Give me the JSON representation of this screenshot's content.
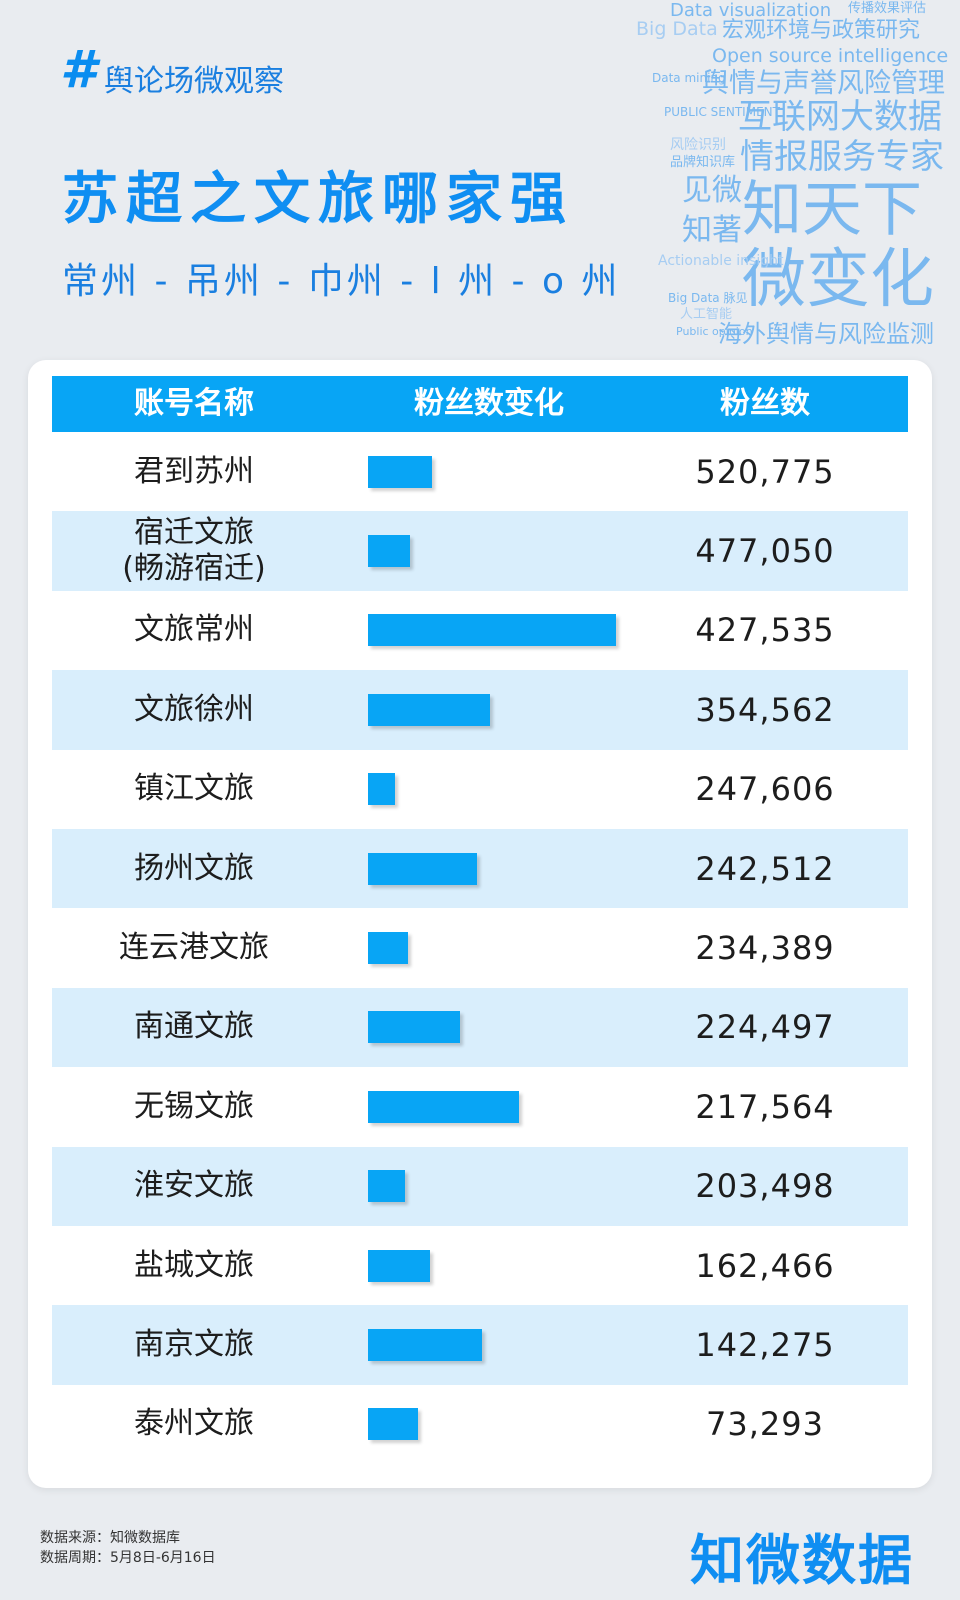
{
  "header": {
    "hash": "#",
    "tag": "舆论场微观察",
    "title": "苏超之文旅哪家强",
    "subtitle": "常州 - 吊州 - 巾州 - l 州 - o 州"
  },
  "word_cloud": [
    "Data visualization",
    "传播效果评估",
    "Big Data",
    "宏观环境与政策研究",
    "宏观环境与政策研究",
    "Open source intelligence",
    "Data mining",
    "舆情与声誉风险管理",
    "PUBLIC SENTIMENT",
    "互联网大数据",
    "风险识别",
    "品牌知识库",
    "情报服务专家",
    "见微",
    "知天下",
    "知著",
    "微变化",
    "Actionable insight",
    "Big Data 脉见",
    "人工智能",
    "Public opinion",
    "海外舆情与风险监测"
  ],
  "table": {
    "headers": [
      "账号名称",
      "粉丝数变化",
      "粉丝数"
    ]
  },
  "chart_data": {
    "type": "table",
    "columns": [
      "账号名称",
      "粉丝数变化",
      "粉丝数"
    ],
    "rows": [
      {
        "name": "君到苏州",
        "change_rel": 0.26,
        "fans": "520,775"
      },
      {
        "name": "宿迁文旅\n(畅游宿迁)",
        "change_rel": 0.17,
        "fans": "477,050"
      },
      {
        "name": "文旅常州",
        "change_rel": 1.0,
        "fans": "427,535"
      },
      {
        "name": "文旅徐州",
        "change_rel": 0.49,
        "fans": "354,562"
      },
      {
        "name": "镇江文旅",
        "change_rel": 0.11,
        "fans": "247,606"
      },
      {
        "name": "扬州文旅",
        "change_rel": 0.44,
        "fans": "242,512"
      },
      {
        "name": "连云港文旅",
        "change_rel": 0.16,
        "fans": "234,389"
      },
      {
        "name": "南通文旅",
        "change_rel": 0.37,
        "fans": "224,497"
      },
      {
        "name": "无锡文旅",
        "change_rel": 0.61,
        "fans": "217,564"
      },
      {
        "name": "淮安文旅",
        "change_rel": 0.15,
        "fans": "203,498"
      },
      {
        "name": "盐城文旅",
        "change_rel": 0.25,
        "fans": "162,466"
      },
      {
        "name": "南京文旅",
        "change_rel": 0.46,
        "fans": "142,275"
      },
      {
        "name": "泰州文旅",
        "change_rel": 0.2,
        "fans": "73,293"
      }
    ]
  },
  "footer": {
    "source": "数据来源：知微数据库",
    "period": "数据周期：5月8日-6月16日",
    "logo": "知微数据"
  },
  "colors": {
    "accent": "#08a5f5",
    "title": "#0f8ef2",
    "row_alt": "#d9eefc"
  }
}
